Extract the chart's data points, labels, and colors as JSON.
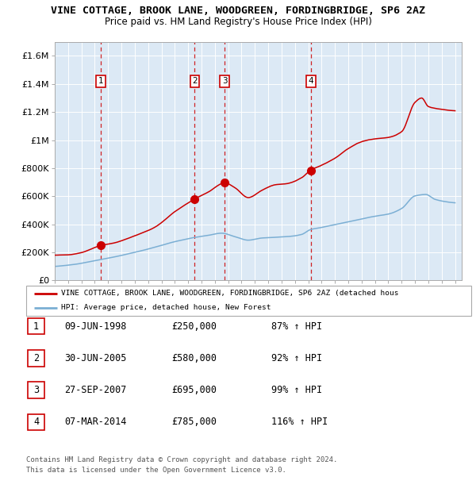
{
  "title": "VINE COTTAGE, BROOK LANE, WOODGREEN, FORDINGBRIDGE, SP6 2AZ",
  "subtitle": "Price paid vs. HM Land Registry's House Price Index (HPI)",
  "xlim": [
    1995.0,
    2025.5
  ],
  "ylim": [
    0,
    1700000
  ],
  "yticks": [
    0,
    200000,
    400000,
    600000,
    800000,
    1000000,
    1200000,
    1400000,
    1600000
  ],
  "ytick_labels": [
    "£0",
    "£200K",
    "£400K",
    "£600K",
    "£800K",
    "£1M",
    "£1.2M",
    "£1.4M",
    "£1.6M"
  ],
  "bg_color": "#dce9f5",
  "red_line_color": "#cc0000",
  "blue_line_color": "#7bafd4",
  "vline_color": "#cc0000",
  "purchases": [
    {
      "num": 1,
      "date": 1998.44,
      "price": 250000
    },
    {
      "num": 2,
      "date": 2005.49,
      "price": 580000
    },
    {
      "num": 3,
      "date": 2007.74,
      "price": 695000
    },
    {
      "num": 4,
      "date": 2014.18,
      "price": 785000
    }
  ],
  "legend_red": "VINE COTTAGE, BROOK LANE, WOODGREEN, FORDINGBRIDGE, SP6 2AZ (detached hous",
  "legend_blue": "HPI: Average price, detached house, New Forest",
  "table_rows": [
    [
      "1",
      "09-JUN-1998",
      "£250,000",
      "87% ↑ HPI"
    ],
    [
      "2",
      "30-JUN-2005",
      "£580,000",
      "92% ↑ HPI"
    ],
    [
      "3",
      "27-SEP-2007",
      "£695,000",
      "99% ↑ HPI"
    ],
    [
      "4",
      "07-MAR-2014",
      "£785,000",
      "116% ↑ HPI"
    ]
  ],
  "footer": "Contains HM Land Registry data © Crown copyright and database right 2024.\nThis data is licensed under the Open Government Licence v3.0."
}
